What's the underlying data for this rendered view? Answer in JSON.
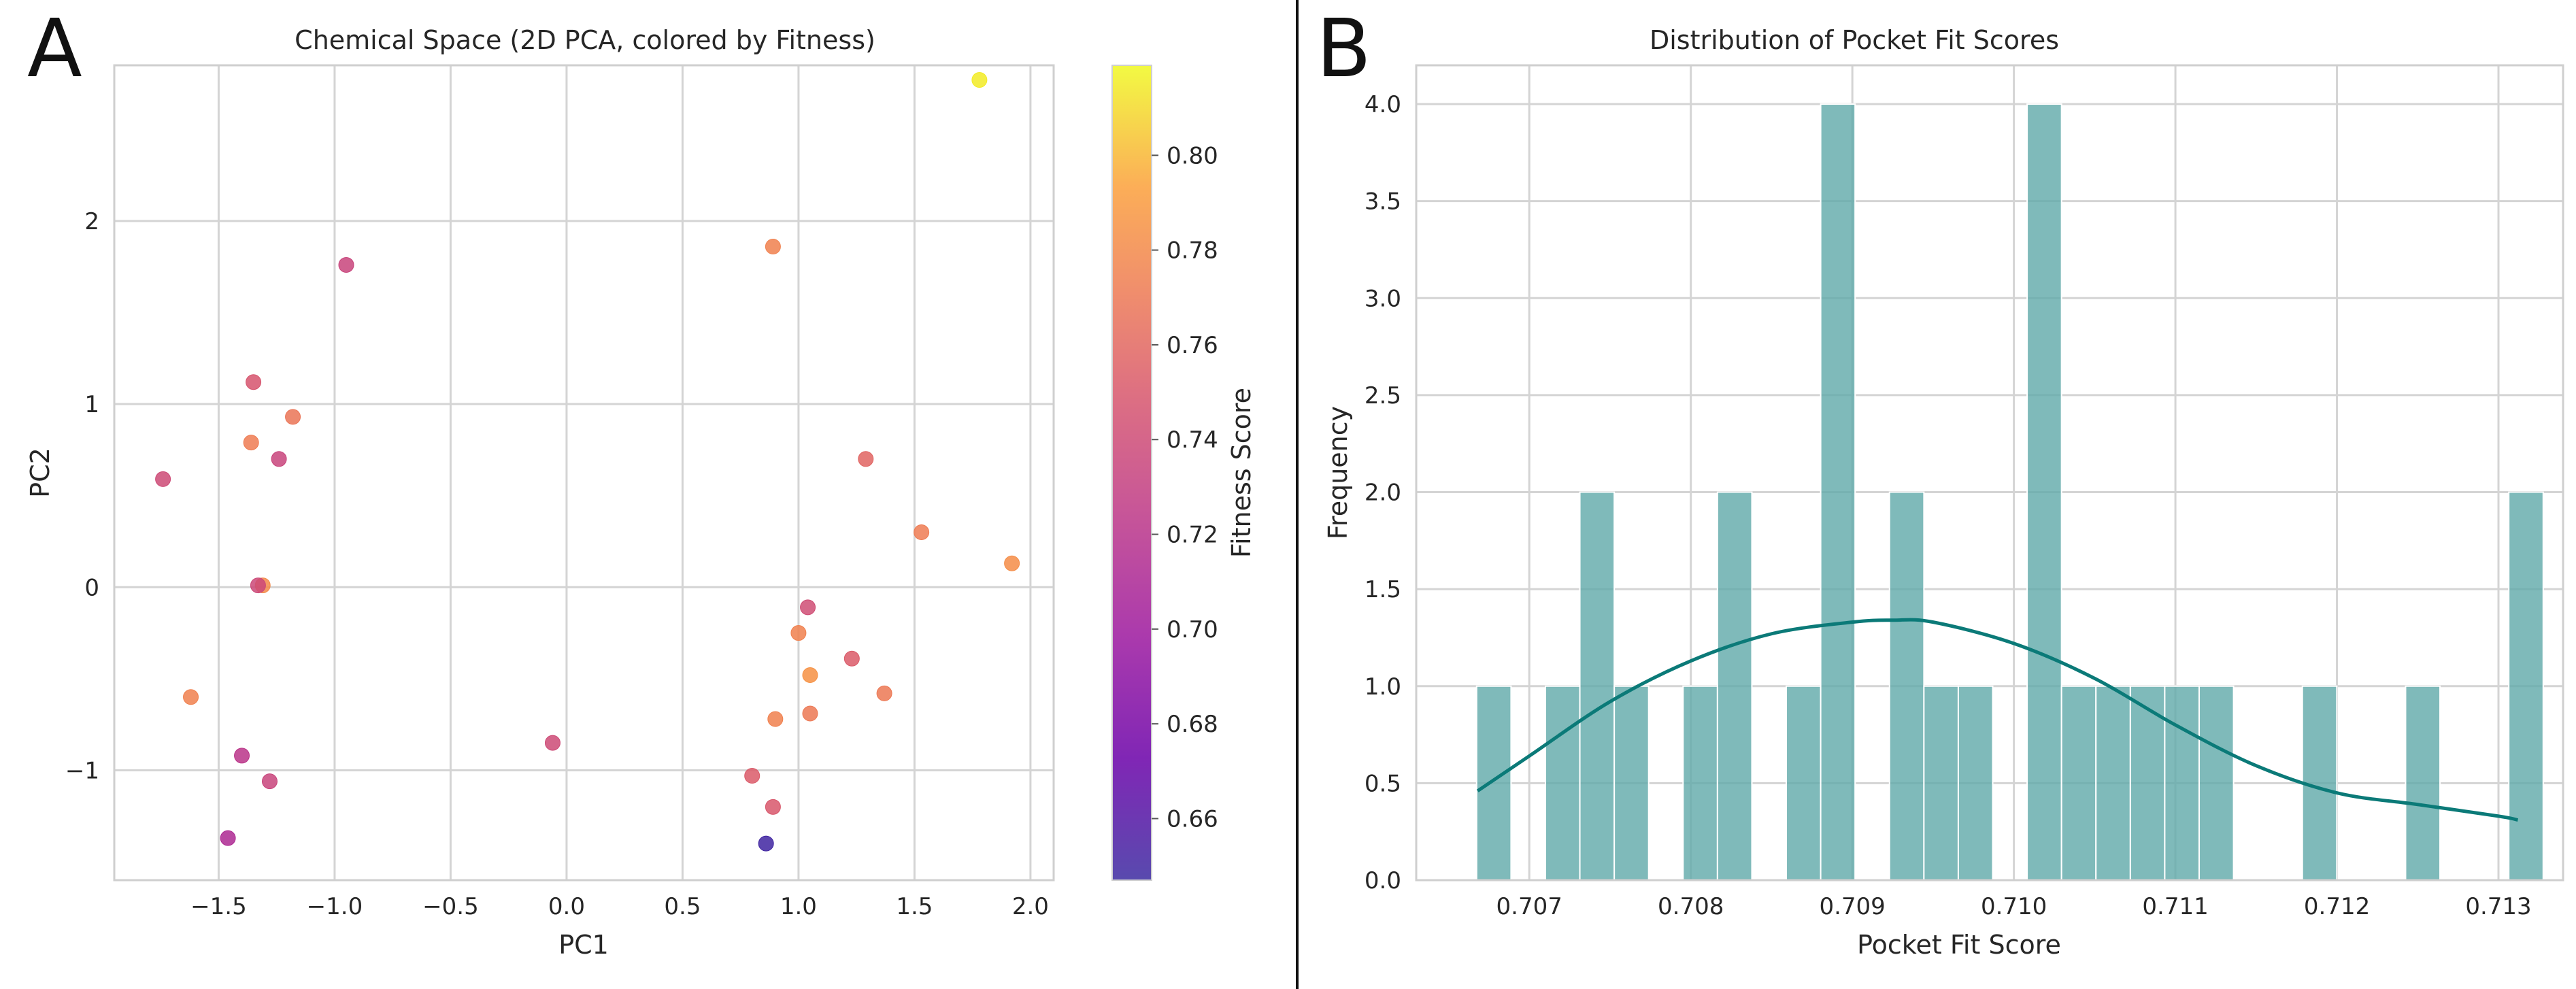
{
  "chart_data": [
    {
      "panel_letter": "A",
      "type": "scatter",
      "title": "Chemical Space (2D PCA, colored by Fitness)",
      "xlabel": "PC1",
      "ylabel": "PC2",
      "xlim": [
        -1.95,
        2.1
      ],
      "ylim": [
        -1.6,
        2.85
      ],
      "xticks": [
        -1.5,
        -1.0,
        -0.5,
        0.0,
        0.5,
        1.0,
        1.5,
        2.0
      ],
      "xtick_labels": [
        "−1.5",
        "−1.0",
        "−0.5",
        "0.0",
        "0.5",
        "1.0",
        "1.5",
        "2.0"
      ],
      "yticks": [
        -1,
        0,
        1,
        2
      ],
      "ytick_labels": [
        "−1",
        "0",
        "1",
        "2"
      ],
      "grid": true,
      "colorbar": {
        "label": "Fitness Score",
        "colormap": "plasma",
        "range": [
          0.647,
          0.819
        ],
        "ticks": [
          0.66,
          0.68,
          0.7,
          0.72,
          0.74,
          0.76,
          0.78,
          0.8
        ],
        "tick_labels": [
          "0.66",
          "0.68",
          "0.70",
          "0.72",
          "0.74",
          "0.76",
          "0.78",
          "0.80"
        ]
      },
      "points": [
        {
          "x": 1.78,
          "y": 2.77,
          "fitness": 0.815
        },
        {
          "x": 0.89,
          "y": 1.86,
          "fitness": 0.775
        },
        {
          "x": -0.95,
          "y": 1.76,
          "fitness": 0.735
        },
        {
          "x": -1.35,
          "y": 1.12,
          "fitness": 0.748
        },
        {
          "x": -1.18,
          "y": 0.93,
          "fitness": 0.768
        },
        {
          "x": -1.36,
          "y": 0.79,
          "fitness": 0.772
        },
        {
          "x": -1.24,
          "y": 0.7,
          "fitness": 0.735
        },
        {
          "x": -1.74,
          "y": 0.59,
          "fitness": 0.74
        },
        {
          "x": 1.29,
          "y": 0.7,
          "fitness": 0.758
        },
        {
          "x": 1.53,
          "y": 0.3,
          "fitness": 0.772
        },
        {
          "x": 1.92,
          "y": 0.13,
          "fitness": 0.782
        },
        {
          "x": -1.31,
          "y": 0.01,
          "fitness": 0.78
        },
        {
          "x": -1.33,
          "y": 0.01,
          "fitness": 0.738
        },
        {
          "x": 1.04,
          "y": -0.11,
          "fitness": 0.742
        },
        {
          "x": 1.0,
          "y": -0.25,
          "fitness": 0.775
        },
        {
          "x": 1.23,
          "y": -0.39,
          "fitness": 0.752
        },
        {
          "x": 1.05,
          "y": -0.48,
          "fitness": 0.785
        },
        {
          "x": -1.62,
          "y": -0.6,
          "fitness": 0.775
        },
        {
          "x": 1.37,
          "y": -0.58,
          "fitness": 0.77
        },
        {
          "x": 0.9,
          "y": -0.72,
          "fitness": 0.775
        },
        {
          "x": 1.05,
          "y": -0.69,
          "fitness": 0.77
        },
        {
          "x": -0.06,
          "y": -0.85,
          "fitness": 0.74
        },
        {
          "x": -1.4,
          "y": -0.92,
          "fitness": 0.722
        },
        {
          "x": 0.8,
          "y": -1.03,
          "fitness": 0.752
        },
        {
          "x": -1.28,
          "y": -1.06,
          "fitness": 0.735
        },
        {
          "x": 0.89,
          "y": -1.2,
          "fitness": 0.75
        },
        {
          "x": -1.46,
          "y": -1.37,
          "fitness": 0.712
        },
        {
          "x": 0.86,
          "y": -1.4,
          "fitness": 0.65
        }
      ]
    },
    {
      "panel_letter": "B",
      "type": "histogram",
      "title": "Distribution of Pocket Fit Scores",
      "xlabel": "Pocket Fit Score",
      "ylabel": "Frequency",
      "xlim": [
        0.7063,
        0.7134
      ],
      "ylim": [
        0,
        4.2
      ],
      "xticks": [
        0.707,
        0.708,
        0.709,
        0.71,
        0.711,
        0.712,
        0.713
      ],
      "xtick_labels": [
        "0.707",
        "0.708",
        "0.709",
        "0.710",
        "0.711",
        "0.712",
        "0.713"
      ],
      "yticks": [
        0.0,
        0.5,
        1.0,
        1.5,
        2.0,
        2.5,
        3.0,
        3.5,
        4.0
      ],
      "ytick_labels": [
        "0.0",
        "0.5",
        "1.0",
        "1.5",
        "2.0",
        "2.5",
        "3.0",
        "3.5",
        "4.0"
      ],
      "grid": true,
      "bar_color": "#5fa9a9",
      "kde_color": "#0b7a78",
      "bin_start": 0.706674,
      "bin_width": 0.000213,
      "counts": [
        1,
        0,
        1,
        2,
        1,
        0,
        1,
        2,
        0,
        1,
        4,
        0,
        2,
        1,
        1,
        0,
        4,
        1,
        1,
        1,
        1,
        1,
        0,
        0,
        1,
        0,
        0,
        1,
        0,
        0,
        2
      ],
      "kde": {
        "x": [
          0.70668,
          0.707,
          0.7075,
          0.708,
          0.7085,
          0.709,
          0.70925,
          0.7095,
          0.71,
          0.7105,
          0.711,
          0.7115,
          0.712,
          0.7125,
          0.713,
          0.71312
        ],
        "y": [
          0.46,
          0.64,
          0.92,
          1.13,
          1.27,
          1.33,
          1.34,
          1.33,
          1.22,
          1.04,
          0.8,
          0.59,
          0.45,
          0.39,
          0.33,
          0.31
        ]
      }
    }
  ]
}
